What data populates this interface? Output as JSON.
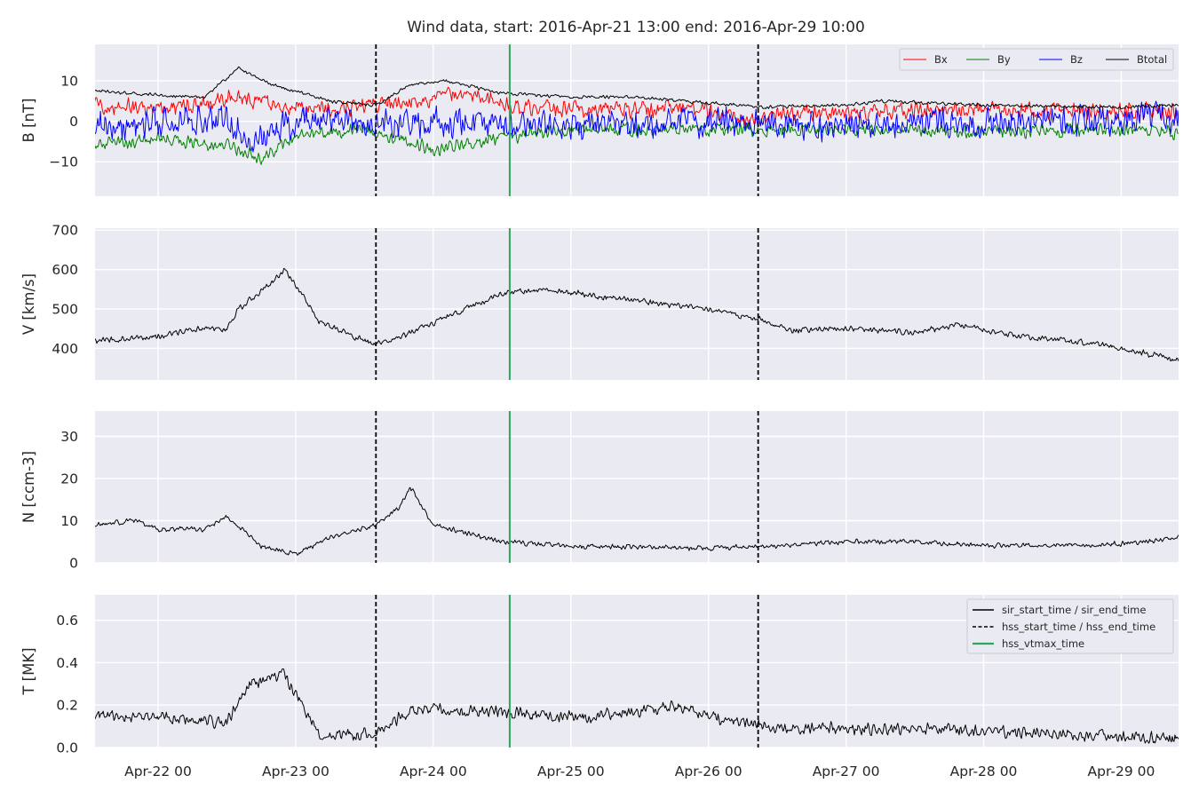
{
  "title": "Wind data, start: 2016-Apr-21 13:00  end: 2016-Apr-29 10:00",
  "chart_data": {
    "type": "line",
    "time_range": [
      "2016-04-21T13:00",
      "2016-04-29T10:00"
    ],
    "x_ticks": [
      {
        "t": "2016-04-22T00:00",
        "label": "Apr-22 00"
      },
      {
        "t": "2016-04-23T00:00",
        "label": "Apr-23 00"
      },
      {
        "t": "2016-04-24T00:00",
        "label": "Apr-24 00"
      },
      {
        "t": "2016-04-25T00:00",
        "label": "Apr-25 00"
      },
      {
        "t": "2016-04-26T00:00",
        "label": "Apr-26 00"
      },
      {
        "t": "2016-04-27T00:00",
        "label": "Apr-27 00"
      },
      {
        "t": "2016-04-28T00:00",
        "label": "Apr-28 00"
      },
      {
        "t": "2016-04-29T00:00",
        "label": "Apr-29 00"
      }
    ],
    "markers": [
      {
        "name": "hss_start_time",
        "t": "2016-04-23T14:00",
        "style": "dashed",
        "color": "#000000"
      },
      {
        "name": "hss_vtmax_time",
        "t": "2016-04-24T13:20",
        "style": "solid",
        "color": "#2ca65a"
      },
      {
        "name": "hss_end_time",
        "t": "2016-04-26T08:40",
        "style": "dashed",
        "color": "#000000"
      }
    ],
    "legend_events": {
      "placement": "top-right",
      "entries": [
        {
          "label": "sir_start_time / sir_end_time",
          "style": "solid",
          "color": "#000000"
        },
        {
          "label": "hss_start_time / hss_end_time",
          "style": "dashed",
          "color": "#000000"
        },
        {
          "label": "hss_vtmax_time",
          "style": "solid",
          "color": "#2ca65a"
        }
      ]
    },
    "panels": [
      {
        "id": "b",
        "ylabel": "B [nT]",
        "ylim": [
          -18.5,
          19
        ],
        "yticks": [
          {
            "v": 10,
            "label": "10"
          },
          {
            "v": 0,
            "label": "0"
          },
          {
            "v": -10,
            "label": "−10"
          }
        ],
        "legend_placement": "top-right",
        "series": [
          {
            "name": "Bx",
            "color": "#ff0000",
            "noise": 2.5,
            "points": [
              [
                "2016-04-21T13:00",
                4
              ],
              [
                "2016-04-22T00:00",
                3
              ],
              [
                "2016-04-22T10:00",
                5
              ],
              [
                "2016-04-22T14:00",
                6
              ],
              [
                "2016-04-22T20:00",
                4
              ],
              [
                "2016-04-23T06:00",
                3
              ],
              [
                "2016-04-23T14:00",
                4
              ],
              [
                "2016-04-23T22:00",
                5
              ],
              [
                "2016-04-24T04:00",
                7
              ],
              [
                "2016-04-24T12:00",
                4
              ],
              [
                "2016-04-25T00:00",
                3
              ],
              [
                "2016-04-26T00:00",
                3
              ],
              [
                "2016-04-26T08:00",
                0
              ],
              [
                "2016-04-26T12:00",
                2
              ],
              [
                "2016-04-27T00:00",
                2
              ],
              [
                "2016-04-28T00:00",
                3
              ],
              [
                "2016-04-29T00:00",
                2.5
              ],
              [
                "2016-04-29T10:00",
                2.5
              ]
            ]
          },
          {
            "name": "By",
            "color": "#008000",
            "noise": 2.0,
            "points": [
              [
                "2016-04-21T13:00",
                -6
              ],
              [
                "2016-04-22T00:00",
                -4
              ],
              [
                "2016-04-22T12:00",
                -6
              ],
              [
                "2016-04-22T18:00",
                -9
              ],
              [
                "2016-04-23T00:00",
                -4
              ],
              [
                "2016-04-23T12:00",
                -2
              ],
              [
                "2016-04-24T00:00",
                -7
              ],
              [
                "2016-04-24T12:00",
                -4
              ],
              [
                "2016-04-25T00:00",
                -2
              ],
              [
                "2016-04-26T00:00",
                -2
              ],
              [
                "2016-04-27T00:00",
                -2
              ],
              [
                "2016-04-28T00:00",
                -2.5
              ],
              [
                "2016-04-29T00:00",
                -2
              ],
              [
                "2016-04-29T10:00",
                -3
              ]
            ]
          },
          {
            "name": "Bz",
            "color": "#0000ff",
            "noise": 4.5,
            "points": [
              [
                "2016-04-21T13:00",
                -1
              ],
              [
                "2016-04-22T00:00",
                0
              ],
              [
                "2016-04-22T12:00",
                0
              ],
              [
                "2016-04-22T16:00",
                -5
              ],
              [
                "2016-04-23T00:00",
                0
              ],
              [
                "2016-04-24T00:00",
                0
              ],
              [
                "2016-04-25T00:00",
                -1
              ],
              [
                "2016-04-26T00:00",
                0
              ],
              [
                "2016-04-27T00:00",
                -1
              ],
              [
                "2016-04-28T00:00",
                0
              ],
              [
                "2016-04-29T00:00",
                0.5
              ],
              [
                "2016-04-29T10:00",
                1
              ]
            ]
          },
          {
            "name": "Btotal",
            "color": "#000000",
            "noise": 0.5,
            "points": [
              [
                "2016-04-21T13:00",
                7.5
              ],
              [
                "2016-04-22T00:00",
                6.5
              ],
              [
                "2016-04-22T08:00",
                6
              ],
              [
                "2016-04-22T14:00",
                13
              ],
              [
                "2016-04-22T20:00",
                9
              ],
              [
                "2016-04-23T06:00",
                5
              ],
              [
                "2016-04-23T14:00",
                4
              ],
              [
                "2016-04-23T20:00",
                9
              ],
              [
                "2016-04-24T02:00",
                10
              ],
              [
                "2016-04-24T12:00",
                7
              ],
              [
                "2016-04-25T00:00",
                6
              ],
              [
                "2016-04-25T12:00",
                6
              ],
              [
                "2016-04-26T00:00",
                4.5
              ],
              [
                "2016-04-26T10:00",
                3.5
              ],
              [
                "2016-04-27T00:00",
                4
              ],
              [
                "2016-04-27T06:00",
                5
              ],
              [
                "2016-04-28T00:00",
                4
              ],
              [
                "2016-04-29T00:00",
                3.5
              ],
              [
                "2016-04-29T10:00",
                4
              ]
            ]
          }
        ]
      },
      {
        "id": "v",
        "ylabel": "V [km/s]",
        "ylim": [
          320,
          705
        ],
        "yticks": [
          {
            "v": 700,
            "label": "700"
          },
          {
            "v": 600,
            "label": "600"
          },
          {
            "v": 500,
            "label": "500"
          },
          {
            "v": 400,
            "label": "400"
          }
        ],
        "series": [
          {
            "name": "V",
            "color": "#000000",
            "noise": 9,
            "points": [
              [
                "2016-04-21T13:00",
                420
              ],
              [
                "2016-04-22T00:00",
                430
              ],
              [
                "2016-04-22T06:00",
                450
              ],
              [
                "2016-04-22T12:00",
                450
              ],
              [
                "2016-04-22T14:00",
                500
              ],
              [
                "2016-04-22T20:00",
                570
              ],
              [
                "2016-04-22T22:00",
                600
              ],
              [
                "2016-04-23T00:00",
                560
              ],
              [
                "2016-04-23T04:00",
                470
              ],
              [
                "2016-04-23T10:00",
                430
              ],
              [
                "2016-04-23T14:00",
                410
              ],
              [
                "2016-04-23T20:00",
                440
              ],
              [
                "2016-04-24T04:00",
                490
              ],
              [
                "2016-04-24T12:00",
                540
              ],
              [
                "2016-04-24T20:00",
                550
              ],
              [
                "2016-04-25T06:00",
                530
              ],
              [
                "2016-04-25T18:00",
                510
              ],
              [
                "2016-04-26T00:00",
                500
              ],
              [
                "2016-04-26T10:00",
                470
              ],
              [
                "2016-04-26T14:00",
                445
              ],
              [
                "2016-04-27T00:00",
                450
              ],
              [
                "2016-04-27T12:00",
                440
              ],
              [
                "2016-04-27T20:00",
                460
              ],
              [
                "2016-04-28T06:00",
                430
              ],
              [
                "2016-04-28T18:00",
                415
              ],
              [
                "2016-04-29T00:00",
                400
              ],
              [
                "2016-04-29T10:00",
                370
              ]
            ]
          }
        ]
      },
      {
        "id": "n",
        "ylabel": "N [ccm-3]",
        "ylim": [
          0,
          36
        ],
        "yticks": [
          {
            "v": 30,
            "label": "30"
          },
          {
            "v": 20,
            "label": "20"
          },
          {
            "v": 10,
            "label": "10"
          },
          {
            "v": 0,
            "label": "0"
          }
        ],
        "series": [
          {
            "name": "N",
            "color": "#000000",
            "noise": 0.7,
            "points": [
              [
                "2016-04-21T13:00",
                9
              ],
              [
                "2016-04-21T20:00",
                10
              ],
              [
                "2016-04-22T00:00",
                8
              ],
              [
                "2016-04-22T08:00",
                8
              ],
              [
                "2016-04-22T12:00",
                11
              ],
              [
                "2016-04-22T18:00",
                4
              ],
              [
                "2016-04-23T00:00",
                2
              ],
              [
                "2016-04-23T06:00",
                6
              ],
              [
                "2016-04-23T14:00",
                9
              ],
              [
                "2016-04-23T18:00",
                13
              ],
              [
                "2016-04-23T20:00",
                18
              ],
              [
                "2016-04-24T00:00",
                9
              ],
              [
                "2016-04-24T12:00",
                5
              ],
              [
                "2016-04-25T00:00",
                4
              ],
              [
                "2016-04-26T00:00",
                3.5
              ],
              [
                "2016-04-26T12:00",
                4
              ],
              [
                "2016-04-27T00:00",
                5
              ],
              [
                "2016-04-27T12:00",
                5
              ],
              [
                "2016-04-28T00:00",
                4
              ],
              [
                "2016-04-29T00:00",
                4.5
              ],
              [
                "2016-04-29T10:00",
                6
              ]
            ]
          }
        ]
      },
      {
        "id": "t",
        "ylabel": "T [MK]",
        "ylim": [
          0,
          0.72
        ],
        "yticks": [
          {
            "v": 0.6,
            "label": "0.6"
          },
          {
            "v": 0.4,
            "label": "0.4"
          },
          {
            "v": 0.2,
            "label": "0.2"
          },
          {
            "v": 0.0,
            "label": "0.0"
          }
        ],
        "series": [
          {
            "name": "T",
            "color": "#000000",
            "noise": 0.035,
            "points": [
              [
                "2016-04-21T13:00",
                0.15
              ],
              [
                "2016-04-22T00:00",
                0.14
              ],
              [
                "2016-04-22T12:00",
                0.12
              ],
              [
                "2016-04-22T16:00",
                0.3
              ],
              [
                "2016-04-22T22:00",
                0.35
              ],
              [
                "2016-04-23T04:00",
                0.06
              ],
              [
                "2016-04-23T14:00",
                0.06
              ],
              [
                "2016-04-23T20:00",
                0.18
              ],
              [
                "2016-04-24T12:00",
                0.17
              ],
              [
                "2016-04-25T00:00",
                0.14
              ],
              [
                "2016-04-25T18:00",
                0.19
              ],
              [
                "2016-04-26T00:00",
                0.15
              ],
              [
                "2016-04-26T12:00",
                0.09
              ],
              [
                "2016-04-27T00:00",
                0.09
              ],
              [
                "2016-04-28T00:00",
                0.08
              ],
              [
                "2016-04-28T18:00",
                0.06
              ],
              [
                "2016-04-29T00:00",
                0.05
              ],
              [
                "2016-04-29T10:00",
                0.04
              ]
            ]
          }
        ]
      }
    ]
  }
}
